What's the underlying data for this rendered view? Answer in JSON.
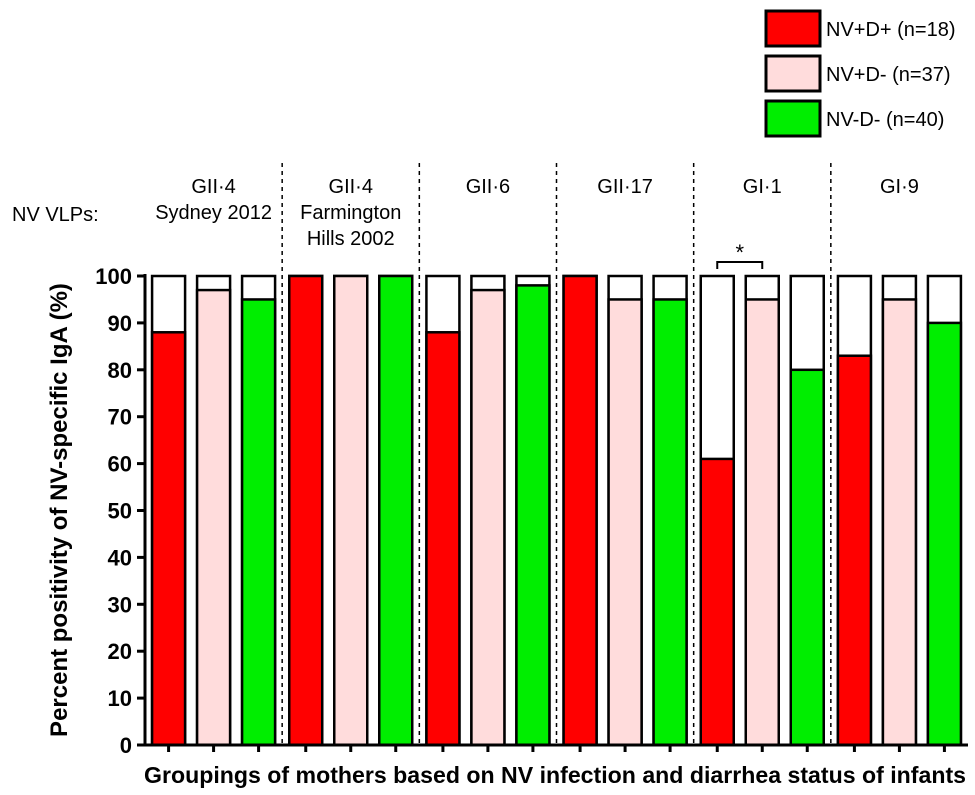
{
  "chart_data": {
    "type": "bar",
    "ylabel": "Percent positivity of NV-specific IgA (%)",
    "xlabel": "Groupings of mothers based on NV infection and diarrhea status of infants",
    "ylim": [
      0,
      100
    ],
    "yticks": [
      0,
      10,
      20,
      30,
      40,
      50,
      60,
      70,
      80,
      90,
      100
    ],
    "vlp_label": "NV VLPs:",
    "groups": [
      {
        "lines": [
          "GII·4",
          "Sydney 2012"
        ],
        "values": [
          88,
          97,
          95
        ]
      },
      {
        "lines": [
          "GII·4",
          "Farmington",
          "Hills 2002"
        ],
        "values": [
          100,
          100,
          100
        ]
      },
      {
        "lines": [
          "GII·6"
        ],
        "values": [
          88,
          97,
          98
        ]
      },
      {
        "lines": [
          "GII·17"
        ],
        "values": [
          100,
          95,
          95
        ]
      },
      {
        "lines": [
          "GI·1"
        ],
        "values": [
          61,
          95,
          80
        ]
      },
      {
        "lines": [
          "GI·9"
        ],
        "values": [
          83,
          95,
          90
        ]
      }
    ],
    "series": [
      {
        "name": "NV+D+ (n=18)",
        "color": "#ff0000"
      },
      {
        "name": "NV+D- (n=37)",
        "color": "#ffdcdc"
      },
      {
        "name": "NV-D- (n=40)",
        "color": "#00ee00"
      }
    ],
    "annotations": [
      {
        "text": "*",
        "group": 4,
        "from_series": 0,
        "to_series": 1
      }
    ],
    "legend_position": "top-right"
  }
}
